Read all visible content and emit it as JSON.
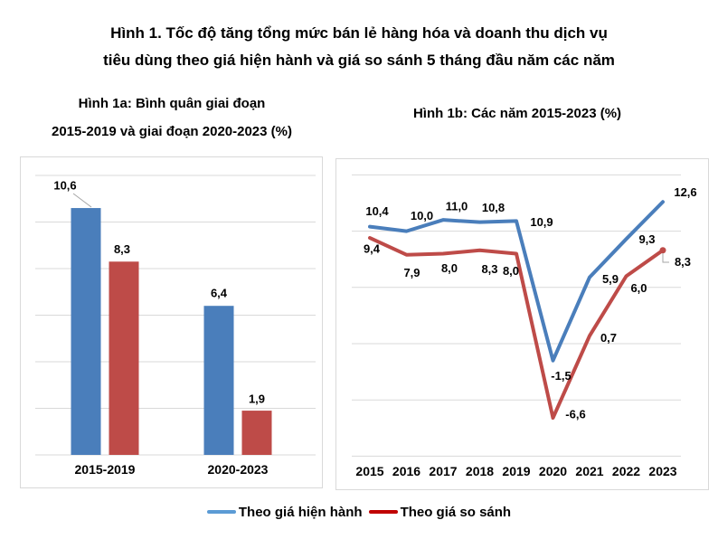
{
  "header": {
    "title_line1": "Hình 1. Tốc độ tăng tổng mức bán lẻ hàng hóa và doanh thu dịch vụ",
    "title_line2": "tiêu dùng theo giá hiện hành và giá so sánh 5 tháng đầu năm các năm"
  },
  "legend": {
    "items": [
      {
        "label": "Theo giá hiện hành",
        "color": "#5B9BD5"
      },
      {
        "label": "Theo giá so sánh",
        "color": "#C00000"
      }
    ]
  },
  "colors": {
    "series_current": "#4A7EBB",
    "series_constant": "#BE4B48",
    "gridline": "#D9D9D9",
    "panel_border": "#D9D9D9",
    "leader": "#A6A6A6",
    "text": "#000000"
  },
  "chart_data": [
    {
      "type": "bar",
      "title_line1": "Hình 1a: Bình quân giai đoạn",
      "title_line2": "2015-2019 và giai đoạn 2020-2023 (%)",
      "categories": [
        "2015-2019",
        "2020-2023"
      ],
      "series": [
        {
          "name": "Theo giá hiện hành",
          "color": "#4A7EBB",
          "values": [
            10.6,
            6.4
          ],
          "labels": [
            "10,6",
            "6,4"
          ],
          "label_offsets": [
            [
              -23,
              -25
            ],
            [
              0,
              -14
            ]
          ]
        },
        {
          "name": "Theo giá so sánh",
          "color": "#BE4B48",
          "values": [
            8.3,
            1.9
          ],
          "labels": [
            "8,3",
            "1,9"
          ],
          "label_offsets": [
            [
              -2,
              -14
            ],
            [
              0,
              -13
            ]
          ]
        }
      ],
      "ylim": [
        0,
        12
      ],
      "grid_step": 2,
      "grid": true,
      "legend_position": "none",
      "leader_line": [
        [
          58,
          40
        ],
        [
          78,
          55
        ]
      ]
    },
    {
      "type": "line",
      "title": "Hình 1b: Các năm 2015-2023  (%)",
      "x": [
        "2015",
        "2016",
        "2017",
        "2018",
        "2019",
        "2020",
        "2021",
        "2022",
        "2023"
      ],
      "series": [
        {
          "name": "Theo giá hiện hành",
          "color": "#4A7EBB",
          "values": [
            10.4,
            10.0,
            11.0,
            10.8,
            10.9,
            -1.5,
            5.9,
            9.3,
            12.6
          ],
          "labels": [
            "10,4",
            "10,0",
            "11,0",
            "10,8",
            "10,9",
            "-1,5",
            "5,9",
            "9,3",
            "12,6"
          ],
          "label_offsets": [
            [
              8,
              -17
            ],
            [
              17,
              -17
            ],
            [
              15,
              -15
            ],
            [
              15,
              -16
            ],
            [
              28,
              1
            ],
            [
              9,
              17
            ],
            [
              23,
              2
            ],
            [
              23,
              0
            ],
            [
              25,
              -11
            ]
          ],
          "end_marker": false
        },
        {
          "name": "Theo giá so sánh",
          "color": "#BE4B48",
          "values": [
            9.4,
            7.9,
            8.0,
            8.3,
            8.0,
            -6.6,
            0.7,
            6.0,
            8.3
          ],
          "labels": [
            "9,4",
            "7,9",
            "8,0",
            "8,3",
            "8,0",
            "-6,6",
            "0,7",
            "6,0",
            "8,3"
          ],
          "label_offsets": [
            [
              2,
              12
            ],
            [
              6,
              20
            ],
            [
              7,
              16
            ],
            [
              11,
              21
            ],
            [
              -6,
              19
            ],
            [
              25,
              -4
            ],
            [
              21,
              2
            ],
            [
              14,
              13
            ],
            [
              22,
              13
            ]
          ],
          "end_marker": true,
          "leader_line": [
            [
              361,
              104
            ],
            [
              361,
              114
            ],
            [
              368,
              114
            ]
          ]
        }
      ],
      "ylim": [
        -10,
        15
      ],
      "grid_step": 5,
      "grid": true,
      "legend_position": "bottom-shared"
    }
  ]
}
